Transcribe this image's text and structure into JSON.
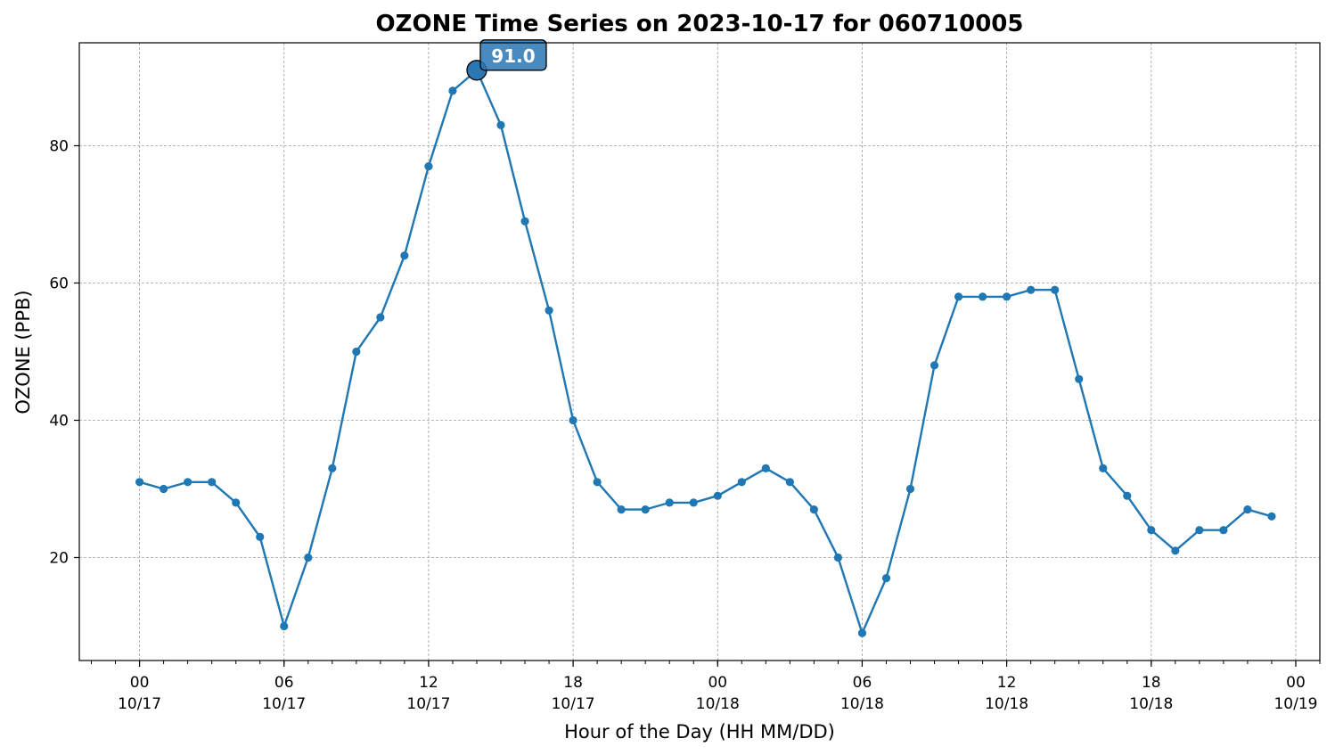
{
  "chart_data": {
    "type": "line",
    "title": "OZONE Time Series on 2023-10-17 for 060710005",
    "xlabel": "Hour of the Day (HH MM/DD)",
    "ylabel": "OZONE (PPB)",
    "x_start": "2023-10-17T00:00",
    "x_end": "2023-10-19T00:00",
    "xlim": [
      "2023-10-16T21:30",
      "2023-10-19T01:00"
    ],
    "ylim": [
      5,
      95
    ],
    "grid": true,
    "yticks": [
      20,
      40,
      60,
      80
    ],
    "xticks": [
      {
        "x": "2023-10-17T00:00",
        "hour": "00",
        "date": "10/17"
      },
      {
        "x": "2023-10-17T06:00",
        "hour": "06",
        "date": "10/17"
      },
      {
        "x": "2023-10-17T12:00",
        "hour": "12",
        "date": "10/17"
      },
      {
        "x": "2023-10-17T18:00",
        "hour": "18",
        "date": "10/17"
      },
      {
        "x": "2023-10-18T00:00",
        "hour": "00",
        "date": "10/18"
      },
      {
        "x": "2023-10-18T06:00",
        "hour": "06",
        "date": "10/18"
      },
      {
        "x": "2023-10-18T12:00",
        "hour": "12",
        "date": "10/18"
      },
      {
        "x": "2023-10-18T18:00",
        "hour": "18",
        "date": "10/18"
      },
      {
        "x": "2023-10-19T00:00",
        "hour": "00",
        "date": "10/19"
      }
    ],
    "series": [
      {
        "color": "#1f77b4",
        "values": [
          31,
          30,
          31,
          31,
          28,
          23,
          10,
          20,
          33,
          50,
          55,
          64,
          77,
          88,
          91,
          83,
          69,
          56,
          40,
          31,
          27,
          27,
          28,
          28,
          29,
          31,
          33,
          31,
          27,
          20,
          9,
          17,
          30,
          48,
          58,
          58,
          58,
          59,
          59,
          46,
          33,
          29,
          24,
          21,
          24,
          24,
          27,
          26
        ]
      }
    ],
    "annotation": {
      "x": "2023-10-17T14:00",
      "y": 91.0,
      "text": "91.0",
      "box_color": "#2a77b4"
    }
  }
}
